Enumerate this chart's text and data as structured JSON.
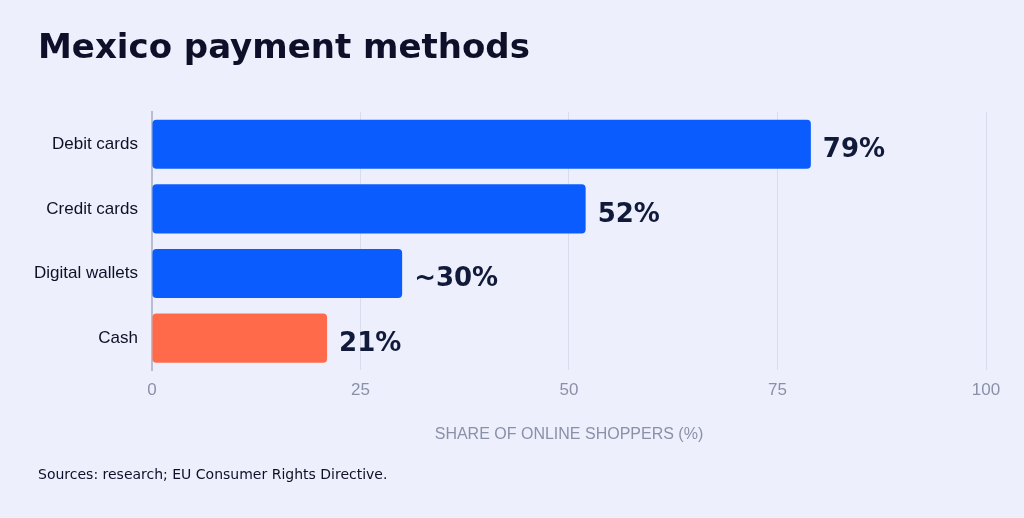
{
  "chart_data": {
    "type": "bar",
    "orientation": "horizontal",
    "title": "Mexico payment methods",
    "xlabel": "SHARE OF ONLINE SHOPPERS (%)",
    "categories": [
      "Debit cards",
      "Credit cards",
      "Digital wallets",
      "Cash"
    ],
    "values": [
      79,
      52,
      30,
      21
    ],
    "colors": [
      "#0a5cff",
      "#0a5cff",
      "#0a5cff",
      "#ff6b4a"
    ],
    "value_labels": [
      "79%",
      "52%",
      "~30%",
      "21%"
    ],
    "xlim": [
      0,
      100
    ],
    "xticks": [
      0,
      25,
      50,
      75,
      100
    ],
    "grid": "x",
    "legend": false,
    "annotations": [
      "Sources: research; EU Consumer Rights Directive."
    ]
  }
}
